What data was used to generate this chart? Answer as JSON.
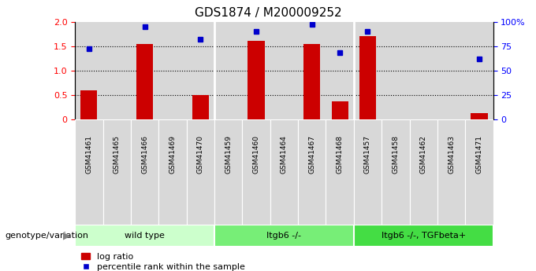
{
  "title": "GDS1874 / M200009252",
  "samples": [
    "GSM41461",
    "GSM41465",
    "GSM41466",
    "GSM41469",
    "GSM41470",
    "GSM41459",
    "GSM41460",
    "GSM41464",
    "GSM41467",
    "GSM41468",
    "GSM41457",
    "GSM41458",
    "GSM41462",
    "GSM41463",
    "GSM41471"
  ],
  "log_ratio": [
    0.6,
    0.0,
    1.55,
    0.0,
    0.5,
    0.0,
    1.6,
    0.0,
    1.55,
    0.37,
    1.7,
    0.0,
    0.0,
    0.0,
    0.12
  ],
  "percentile": [
    72,
    null,
    95,
    null,
    82,
    null,
    90,
    null,
    97,
    68,
    90,
    null,
    null,
    null,
    62
  ],
  "groups": [
    {
      "label": "wild type",
      "start": 0,
      "end": 4
    },
    {
      "label": "Itgb6 -/-",
      "start": 5,
      "end": 9
    },
    {
      "label": "Itgb6 -/-, TGFbeta+",
      "start": 10,
      "end": 14
    }
  ],
  "bar_color": "#cc0000",
  "dot_color": "#0000cc",
  "ylim_left": [
    0,
    2
  ],
  "ylim_right": [
    0,
    100
  ],
  "yticks_left": [
    0,
    0.5,
    1.0,
    1.5,
    2.0
  ],
  "yticks_right": [
    0,
    25,
    50,
    75,
    100
  ],
  "yticklabels_right": [
    "0",
    "25",
    "50",
    "75",
    "100%"
  ],
  "dotted_lines": [
    0.5,
    1.0,
    1.5
  ],
  "legend_bar_label": "log ratio",
  "legend_dot_label": "percentile rank within the sample",
  "genotype_label": "genotype/variation",
  "group_colors": [
    "#ccffcc",
    "#77ee77",
    "#44dd44"
  ],
  "xlim": [
    -0.5,
    14.5
  ],
  "bar_width": 0.6
}
